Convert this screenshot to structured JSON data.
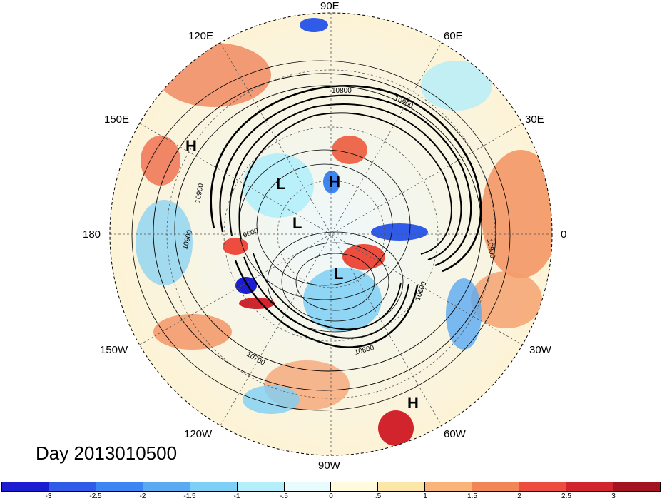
{
  "title": "Day 2013010500",
  "longitude_labels": {
    "lon_0": "0",
    "lon_30e": "30E",
    "lon_60e": "60E",
    "lon_90e": "90E",
    "lon_120e": "120E",
    "lon_150e": "150E",
    "lon_180": "180",
    "lon_150w": "150W",
    "lon_120w": "120W",
    "lon_90w": "90W",
    "lon_60w": "60W",
    "lon_30w": "30W"
  },
  "pressure_centers": {
    "h1": "H",
    "h2": "H",
    "h3": "H",
    "l1": "L",
    "l2": "L",
    "l3": "L"
  },
  "contour_labels": {
    "c1": "10800",
    "c2": "10900",
    "c3": "10900",
    "c4": "10900",
    "c5": "9600",
    "c6": "10900",
    "c7": "10700",
    "c8": "10800",
    "c9": "10600"
  },
  "colorbar": {
    "colors": [
      "#1c1cd0",
      "#2f5be8",
      "#3d85f2",
      "#5aaaf2",
      "#7ecff5",
      "#b3eefa",
      "#e8fbfd",
      "#fffbdc",
      "#fde7a8",
      "#f9b47a",
      "#f38656",
      "#ed4d3f",
      "#d2242c",
      "#a31420"
    ],
    "ticks": [
      "-3",
      "-2.5",
      "-2",
      "-1.5",
      "-1",
      "-.5",
      "0",
      ".5",
      "1",
      "1.5",
      "2",
      "2.5",
      "3"
    ]
  }
}
